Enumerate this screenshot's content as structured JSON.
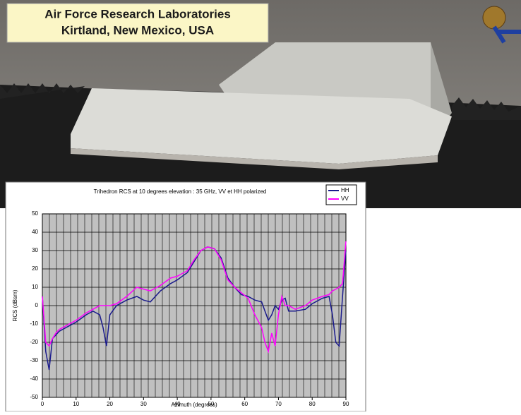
{
  "header": {
    "lines": [
      "Air Force Research Laboratories",
      "Kirtland, New Mexico, USA"
    ]
  },
  "chart_data": {
    "type": "line",
    "title": "Trihedron RCS at 10 degrees elevation : 35 GHz, VV et HH polarized",
    "x_label": "Azimuth (degrees)",
    "y_label": "RCS (dBsm)",
    "x": [
      0,
      1,
      2,
      3,
      4,
      5,
      7,
      10,
      13,
      15,
      17,
      18,
      19,
      20,
      22,
      25,
      28,
      30,
      32,
      35,
      38,
      40,
      43,
      45,
      47,
      49,
      51,
      53,
      55,
      57,
      59,
      61,
      63,
      65,
      66,
      67,
      68,
      69,
      70,
      71,
      72,
      73,
      75,
      78,
      80,
      83,
      85,
      86,
      87,
      88,
      89,
      90
    ],
    "series": [
      {
        "name": "HH",
        "color": "#1a1a8c",
        "values": [
          5,
          -25,
          -35,
          -18,
          -16,
          -14,
          -12,
          -9,
          -5,
          -3,
          -5,
          -12,
          -22,
          -5,
          0,
          3,
          5,
          3,
          2,
          8,
          12,
          14,
          18,
          24,
          30,
          32,
          31,
          26,
          15,
          10,
          6,
          5,
          3,
          2,
          -3,
          -8,
          -5,
          0,
          -2,
          3,
          4,
          -3,
          -3,
          -2,
          1,
          4,
          5,
          -5,
          -20,
          -22,
          5,
          30
        ]
      },
      {
        "name": "VV",
        "color": "#ff00ff",
        "values": [
          5,
          -20,
          -22,
          -18,
          -15,
          -13,
          -11,
          -8,
          -4,
          -2,
          0,
          0,
          0,
          0,
          1,
          5,
          10,
          9,
          8,
          11,
          15,
          16,
          19,
          25,
          30,
          32,
          31,
          25,
          14,
          10,
          7,
          4,
          -5,
          -12,
          -20,
          -25,
          -15,
          -22,
          -5,
          5,
          0,
          0,
          -2,
          0,
          3,
          5,
          6,
          8,
          9,
          10,
          12,
          35
        ]
      }
    ],
    "xlim": [
      0,
      90
    ],
    "xticks": [
      0,
      10,
      20,
      30,
      40,
      50,
      60,
      70,
      80,
      90
    ],
    "ylim": [
      -50,
      50
    ],
    "yticks": [
      -50,
      -40,
      -30,
      -20,
      -10,
      0,
      10,
      20,
      30,
      40,
      50
    ],
    "grid": true,
    "legend": "top-right"
  }
}
